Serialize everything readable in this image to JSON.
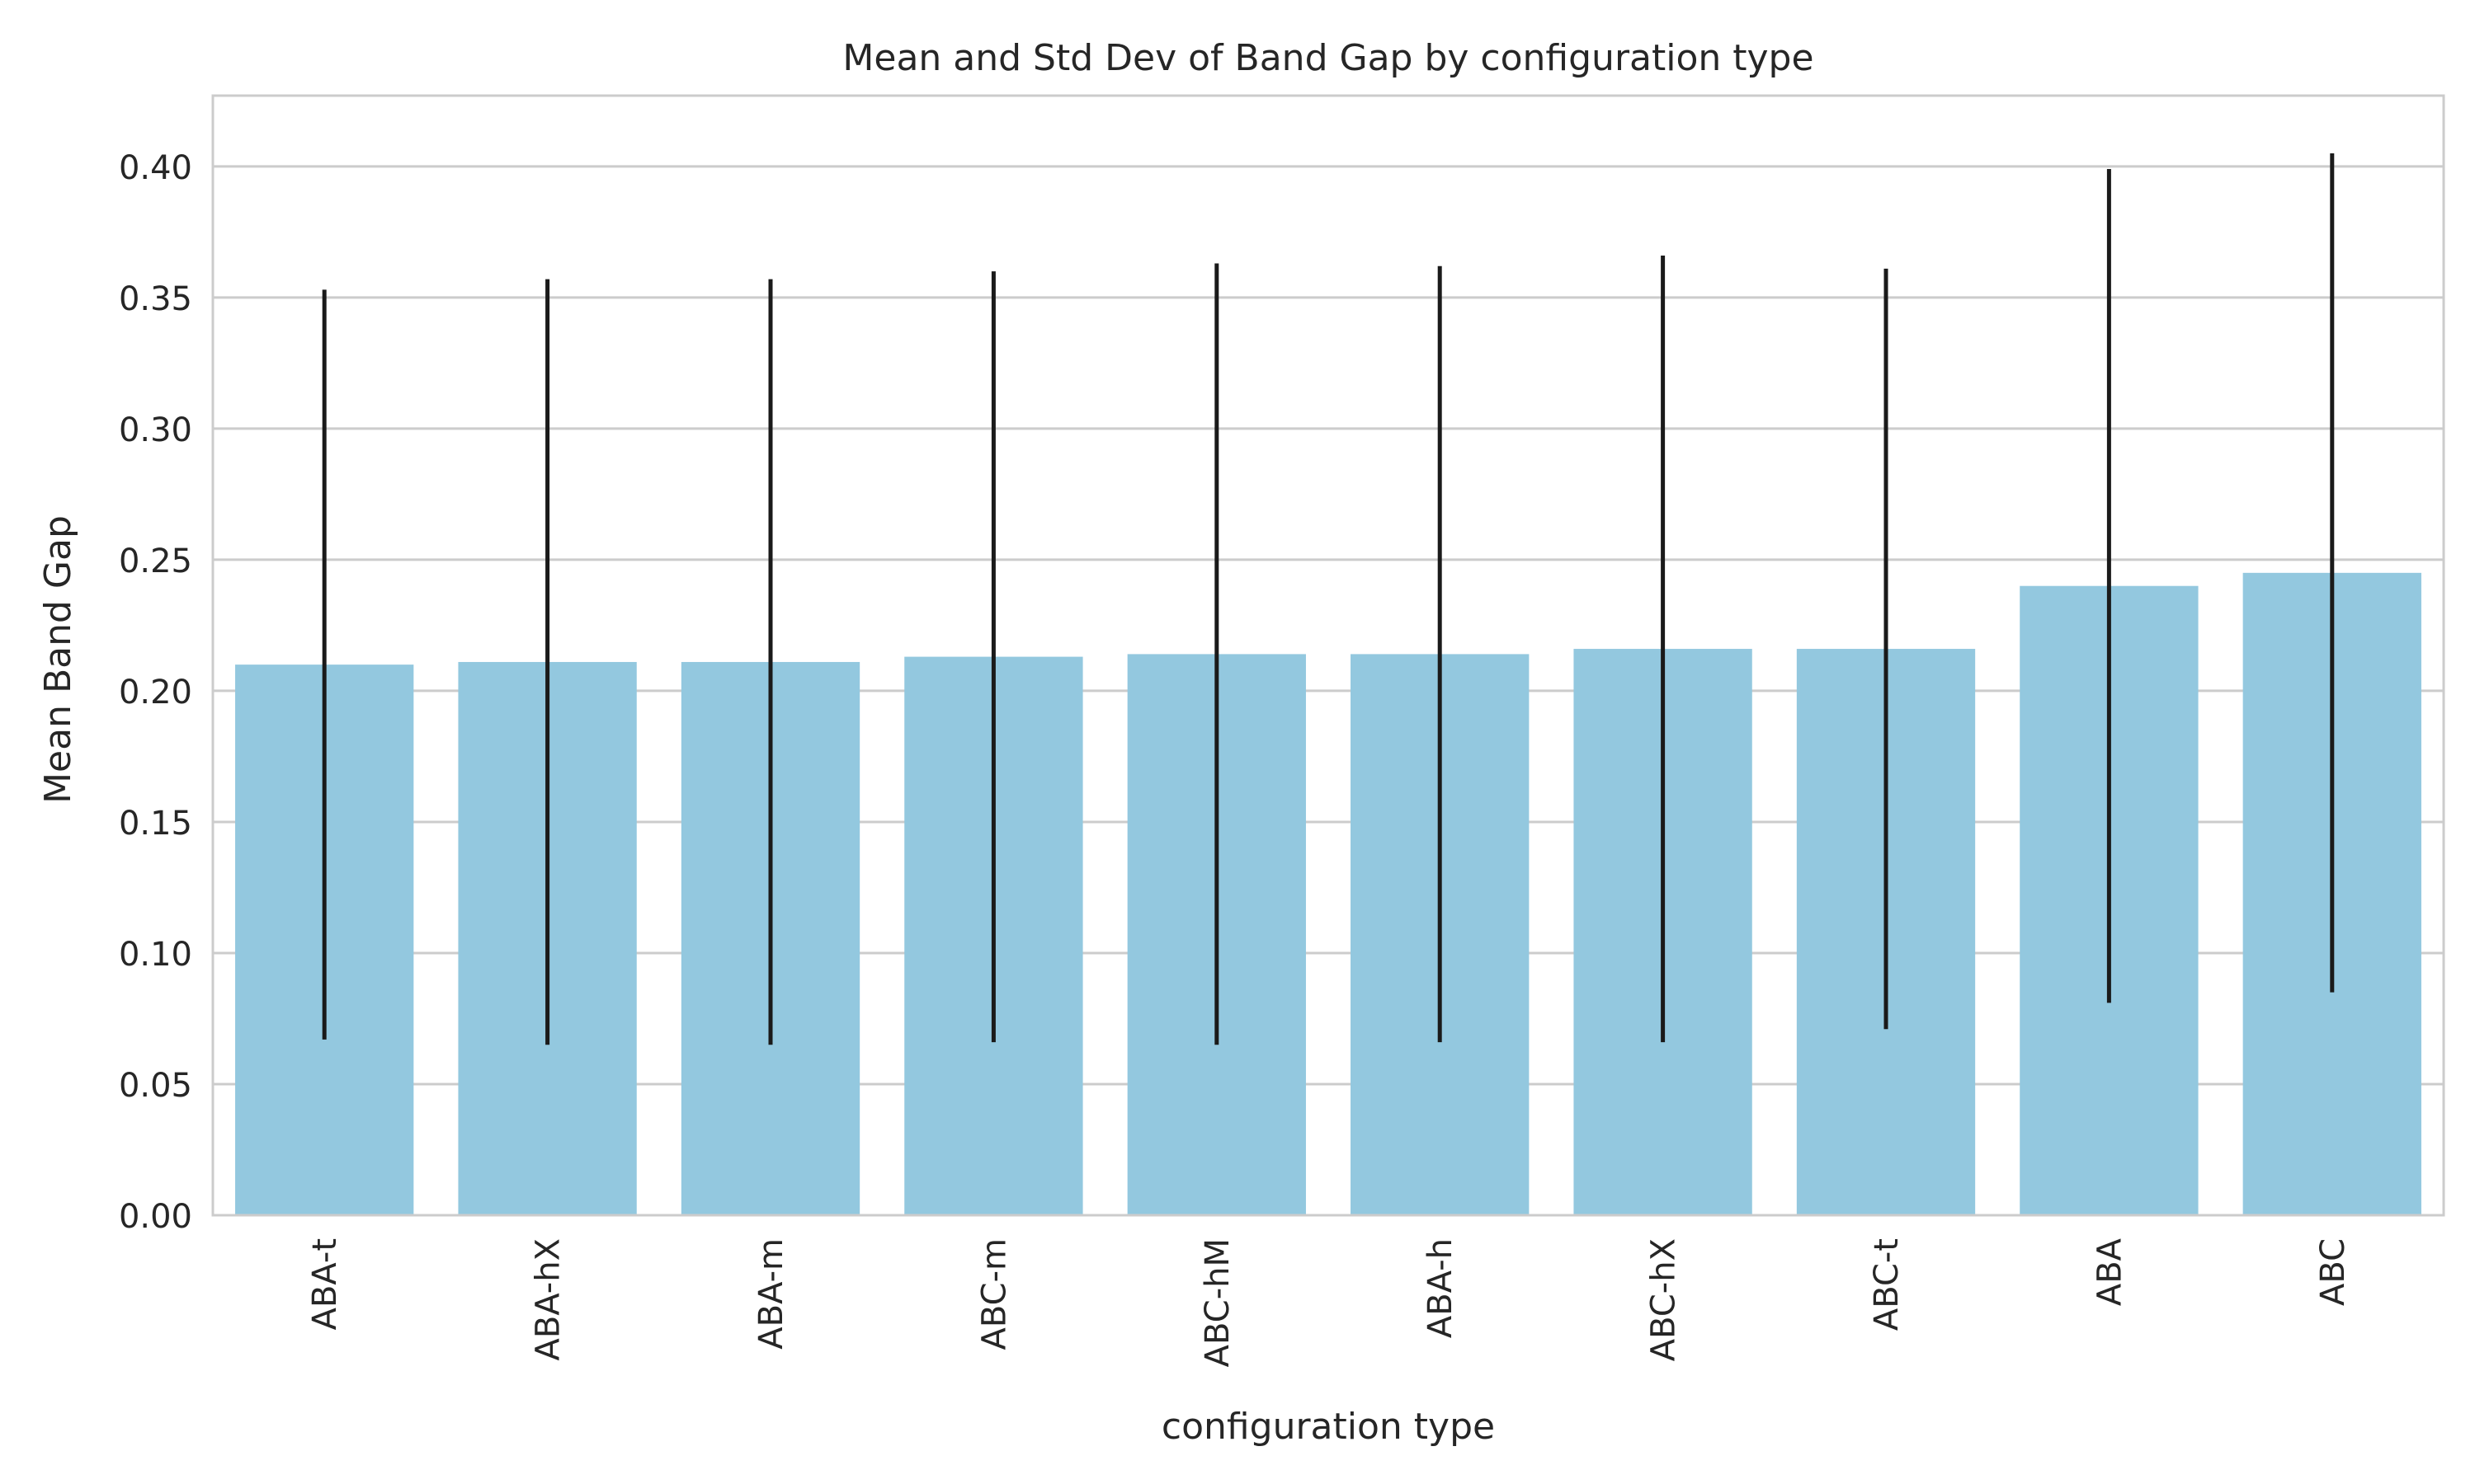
{
  "chart_data": {
    "type": "bar",
    "title": "Mean and Std Dev of Band Gap by configuration type",
    "xlabel": "configuration type",
    "ylabel": "Mean Band Gap",
    "categories": [
      "ABA-t",
      "ABA-hX",
      "ABA-m",
      "ABC-m",
      "ABC-hM",
      "ABA-h",
      "ABC-hX",
      "ABC-t",
      "ABA",
      "ABC"
    ],
    "values": [
      0.21,
      0.211,
      0.211,
      0.213,
      0.214,
      0.214,
      0.216,
      0.216,
      0.24,
      0.245
    ],
    "error": [
      0.143,
      0.146,
      0.146,
      0.147,
      0.149,
      0.148,
      0.15,
      0.145,
      0.159,
      0.16
    ],
    "ylim": [
      0,
      0.427
    ],
    "yticks": [
      "0.00",
      "0.05",
      "0.10",
      "0.15",
      "0.20",
      "0.25",
      "0.30",
      "0.35",
      "0.40"
    ],
    "grid": true,
    "colors": {
      "bar": "#93c8df",
      "error": "#1a1a1a",
      "grid": "#cccccc",
      "axes": "#cccccc"
    }
  }
}
